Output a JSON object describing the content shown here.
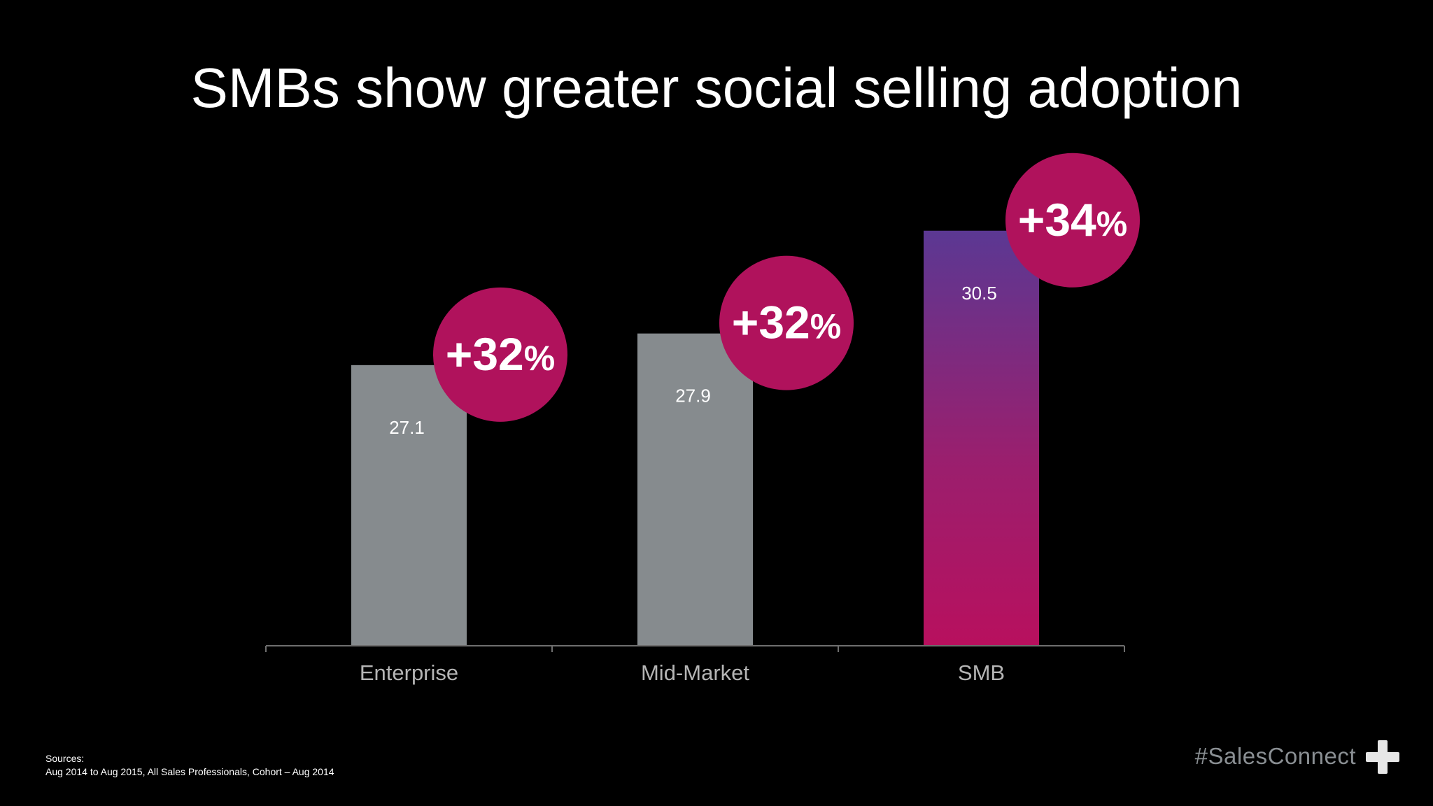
{
  "slide": {
    "title": "SMBs show greater social selling adoption"
  },
  "chart_data": {
    "type": "bar",
    "categories": [
      "Enterprise",
      "Mid-Market",
      "SMB"
    ],
    "values": [
      27.1,
      27.9,
      30.5
    ],
    "value_labels": [
      "27.1",
      "27.9",
      "30.5"
    ],
    "growth_badges": [
      "+32",
      "+32",
      "+34"
    ],
    "badge_unit": "%",
    "ylim": [
      20,
      32
    ],
    "grid": false,
    "colors": {
      "bar_default": "#868b8e",
      "bar_highlight_top": "#5b3893",
      "bar_highlight_bottom": "#b8105e",
      "badge": "#b0125c",
      "axis": "#6e6e6e",
      "category_label": "#b5b5b5"
    }
  },
  "footer": {
    "sources_label": "Sources:",
    "sources_text": "Aug 2014 to Aug 2015, All Sales Professionals, Cohort – Aug 2014",
    "hashtag": "#SalesConnect"
  }
}
